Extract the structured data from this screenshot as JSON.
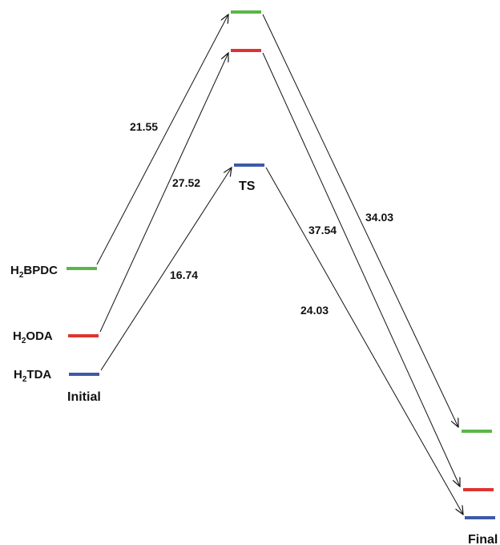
{
  "stages": {
    "initial": "Initial",
    "ts": "TS",
    "final": "Final"
  },
  "systems": [
    {
      "id": "bpdc",
      "prefix": "H",
      "subscript": "2",
      "suffix": "BPDC",
      "color": "#5cb548",
      "barrier": "21.55",
      "release": "34.03"
    },
    {
      "id": "oda",
      "prefix": "H",
      "subscript": "2",
      "suffix": "ODA",
      "color": "#e0332f",
      "barrier": "27.52",
      "release": "37.54"
    },
    {
      "id": "tda",
      "prefix": "H",
      "subscript": "2",
      "suffix": "TDA",
      "color": "#3c5aa6",
      "barrier": "16.74",
      "release": "24.03"
    }
  ],
  "arrow_color": "#111111"
}
